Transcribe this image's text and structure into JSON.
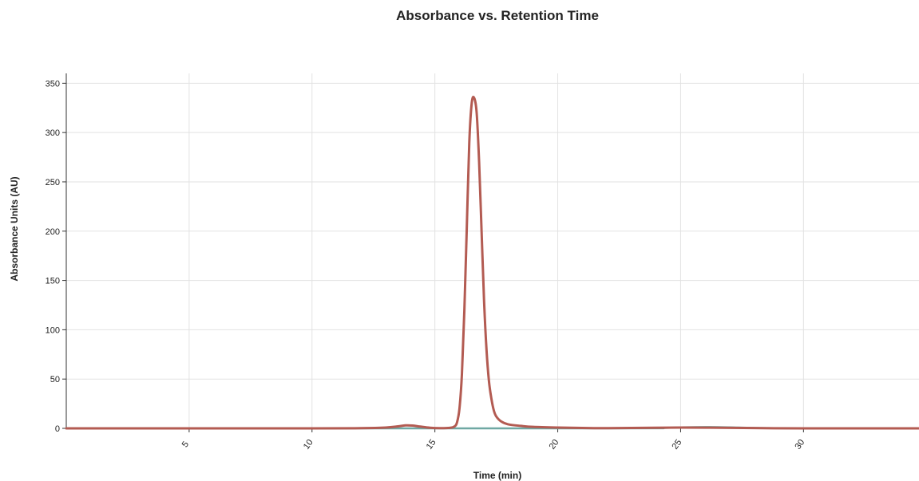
{
  "chart_data": {
    "type": "line",
    "title": "Absorbance vs. Retention Time",
    "xlabel": "Time (min)",
    "ylabel": "Absorbance Units (AU)",
    "xlim": [
      0,
      34.7
    ],
    "ylim": [
      0,
      360
    ],
    "x_ticks": [
      5,
      10,
      15,
      20,
      25,
      30
    ],
    "y_ticks": [
      0,
      50,
      100,
      150,
      200,
      250,
      300,
      350
    ],
    "grid": true,
    "legend": "none",
    "series": [
      {
        "color": "#b35b52",
        "x": [
          0,
          5,
          10,
          12,
          13,
          13.5,
          13.8,
          14.1,
          14.4,
          14.8,
          15.2,
          15.6,
          15.8,
          15.9,
          16.0,
          16.1,
          16.2,
          16.3,
          16.4,
          16.5,
          16.6,
          16.7,
          16.8,
          16.9,
          17.0,
          17.1,
          17.2,
          17.3,
          17.4,
          17.5,
          17.7,
          18.0,
          18.5,
          19,
          20,
          21,
          22,
          25,
          28,
          30,
          34.7
        ],
        "y": [
          0,
          0,
          0,
          0.2,
          0.8,
          2.0,
          3.0,
          2.8,
          1.8,
          0.6,
          0.2,
          0.5,
          2,
          6,
          20,
          55,
          120,
          205,
          290,
          330,
          335,
          320,
          270,
          200,
          130,
          80,
          48,
          30,
          18,
          12,
          7,
          4,
          2.5,
          1.5,
          0.8,
          0.4,
          0.2,
          0.8,
          0.3,
          0,
          0
        ]
      },
      {
        "color": "#6fa8a3",
        "x": [
          0,
          22,
          24,
          25,
          26,
          27,
          28,
          30,
          34.7
        ],
        "y": [
          0,
          0,
          0.3,
          1.0,
          1.3,
          1.0,
          0.4,
          0,
          0
        ]
      }
    ]
  }
}
